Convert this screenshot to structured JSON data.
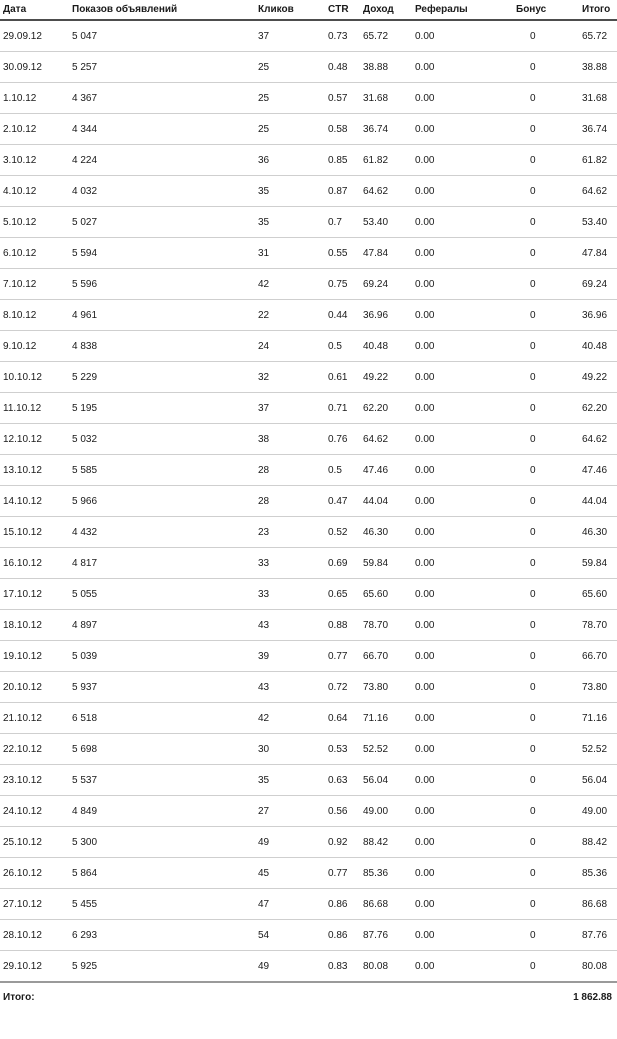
{
  "table": {
    "headers": [
      "Дата",
      "Показов объявлений",
      "Кликов",
      "CTR",
      "Доход",
      "Рефералы",
      "Бонус",
      "Итого"
    ],
    "rows": [
      [
        "29.09.12",
        "5 047",
        "37",
        "0.73",
        "65.72",
        "0.00",
        "0",
        "65.72"
      ],
      [
        "30.09.12",
        "5 257",
        "25",
        "0.48",
        "38.88",
        "0.00",
        "0",
        "38.88"
      ],
      [
        "1.10.12",
        "4 367",
        "25",
        "0.57",
        "31.68",
        "0.00",
        "0",
        "31.68"
      ],
      [
        "2.10.12",
        "4 344",
        "25",
        "0.58",
        "36.74",
        "0.00",
        "0",
        "36.74"
      ],
      [
        "3.10.12",
        "4 224",
        "36",
        "0.85",
        "61.82",
        "0.00",
        "0",
        "61.82"
      ],
      [
        "4.10.12",
        "4 032",
        "35",
        "0.87",
        "64.62",
        "0.00",
        "0",
        "64.62"
      ],
      [
        "5.10.12",
        "5 027",
        "35",
        "0.7",
        "53.40",
        "0.00",
        "0",
        "53.40"
      ],
      [
        "6.10.12",
        "5 594",
        "31",
        "0.55",
        "47.84",
        "0.00",
        "0",
        "47.84"
      ],
      [
        "7.10.12",
        "5 596",
        "42",
        "0.75",
        "69.24",
        "0.00",
        "0",
        "69.24"
      ],
      [
        "8.10.12",
        "4 961",
        "22",
        "0.44",
        "36.96",
        "0.00",
        "0",
        "36.96"
      ],
      [
        "9.10.12",
        "4 838",
        "24",
        "0.5",
        "40.48",
        "0.00",
        "0",
        "40.48"
      ],
      [
        "10.10.12",
        "5 229",
        "32",
        "0.61",
        "49.22",
        "0.00",
        "0",
        "49.22"
      ],
      [
        "11.10.12",
        "5 195",
        "37",
        "0.71",
        "62.20",
        "0.00",
        "0",
        "62.20"
      ],
      [
        "12.10.12",
        "5 032",
        "38",
        "0.76",
        "64.62",
        "0.00",
        "0",
        "64.62"
      ],
      [
        "13.10.12",
        "5 585",
        "28",
        "0.5",
        "47.46",
        "0.00",
        "0",
        "47.46"
      ],
      [
        "14.10.12",
        "5 966",
        "28",
        "0.47",
        "44.04",
        "0.00",
        "0",
        "44.04"
      ],
      [
        "15.10.12",
        "4 432",
        "23",
        "0.52",
        "46.30",
        "0.00",
        "0",
        "46.30"
      ],
      [
        "16.10.12",
        "4 817",
        "33",
        "0.69",
        "59.84",
        "0.00",
        "0",
        "59.84"
      ],
      [
        "17.10.12",
        "5 055",
        "33",
        "0.65",
        "65.60",
        "0.00",
        "0",
        "65.60"
      ],
      [
        "18.10.12",
        "4 897",
        "43",
        "0.88",
        "78.70",
        "0.00",
        "0",
        "78.70"
      ],
      [
        "19.10.12",
        "5 039",
        "39",
        "0.77",
        "66.70",
        "0.00",
        "0",
        "66.70"
      ],
      [
        "20.10.12",
        "5 937",
        "43",
        "0.72",
        "73.80",
        "0.00",
        "0",
        "73.80"
      ],
      [
        "21.10.12",
        "6 518",
        "42",
        "0.64",
        "71.16",
        "0.00",
        "0",
        "71.16"
      ],
      [
        "22.10.12",
        "5 698",
        "30",
        "0.53",
        "52.52",
        "0.00",
        "0",
        "52.52"
      ],
      [
        "23.10.12",
        "5 537",
        "35",
        "0.63",
        "56.04",
        "0.00",
        "0",
        "56.04"
      ],
      [
        "24.10.12",
        "4 849",
        "27",
        "0.56",
        "49.00",
        "0.00",
        "0",
        "49.00"
      ],
      [
        "25.10.12",
        "5 300",
        "49",
        "0.92",
        "88.42",
        "0.00",
        "0",
        "88.42"
      ],
      [
        "26.10.12",
        "5 864",
        "45",
        "0.77",
        "85.36",
        "0.00",
        "0",
        "85.36"
      ],
      [
        "27.10.12",
        "5 455",
        "47",
        "0.86",
        "86.68",
        "0.00",
        "0",
        "86.68"
      ],
      [
        "28.10.12",
        "6 293",
        "54",
        "0.86",
        "87.76",
        "0.00",
        "0",
        "87.76"
      ],
      [
        "29.10.12",
        "5 925",
        "49",
        "0.83",
        "80.08",
        "0.00",
        "0",
        "80.08"
      ]
    ],
    "footer": {
      "label": "Итого:",
      "total": "1 862.88"
    }
  },
  "colors": {
    "background": "#ffffff",
    "text": "#1a1a1a",
    "header_rule": "#4d4d4d",
    "row_rule": "#cfcfcf",
    "footer_rule": "#9a9a9a"
  }
}
